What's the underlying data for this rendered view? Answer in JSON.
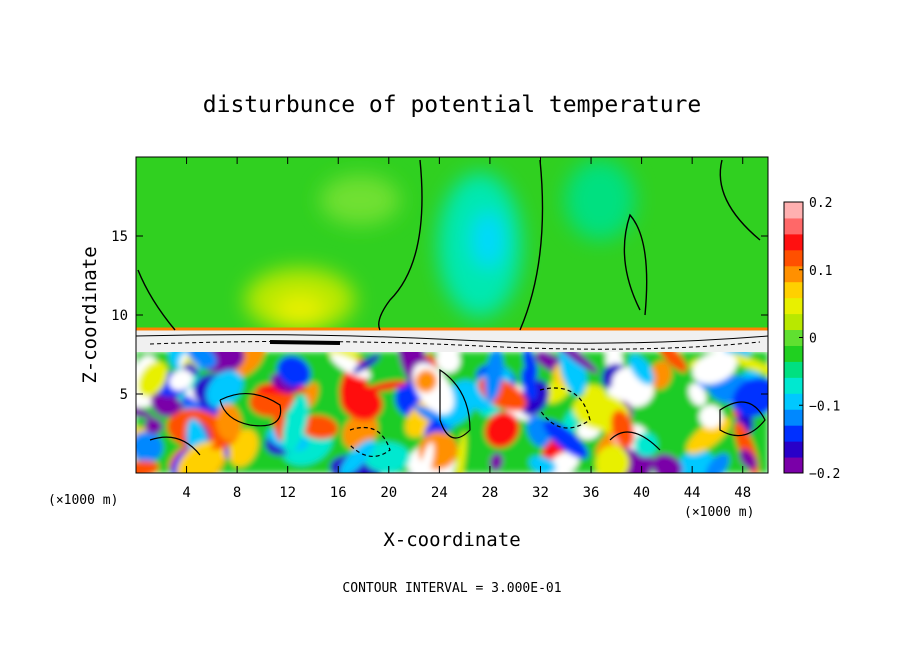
{
  "chart_data": {
    "type": "heatmap",
    "title": "disturbunce of potential temperature",
    "xlabel": "X-coordinate",
    "ylabel": "Z-coordinate",
    "x_unit": "(×1000 m)",
    "xlim": [
      0,
      50
    ],
    "ylim": [
      0,
      20
    ],
    "x_ticks": [
      4,
      8,
      12,
      16,
      20,
      24,
      28,
      32,
      36,
      40,
      44,
      48
    ],
    "y_ticks": [
      5,
      10,
      15
    ],
    "colorbar": {
      "range": [
        -0.2,
        0.2
      ],
      "tick_values": [
        0.2,
        0.1,
        0,
        -0.1,
        -0.2
      ],
      "tick_labels": [
        "0.2",
        "0.1",
        "0",
        "−0.1",
        "−0.2"
      ],
      "colors": [
        "#7a00a8",
        "#2800c8",
        "#0030ff",
        "#0088ff",
        "#00c8ff",
        "#00e8d0",
        "#00e080",
        "#20d020",
        "#60e030",
        "#b8e800",
        "#e8f000",
        "#ffd000",
        "#ff9000",
        "#ff5000",
        "#ff1010",
        "#ff6868",
        "#ffb0b0"
      ]
    },
    "annotation": "CONTOUR INTERVAL = 3.000E-01"
  }
}
